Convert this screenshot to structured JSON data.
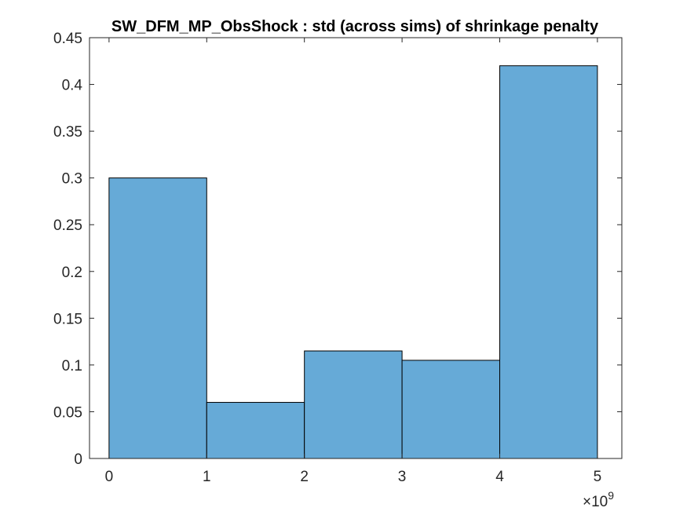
{
  "chart_data": {
    "type": "bar",
    "title": "SW_DFM_MP_ObsShock : std (across sims) of shrinkage penalty",
    "xlabel": "",
    "ylabel": "",
    "x_multiplier": {
      "base": "10",
      "exponent": "9",
      "prefix": "×"
    },
    "bins": [
      {
        "x_start": 0,
        "x_end": 1,
        "value": 0.3
      },
      {
        "x_start": 1,
        "x_end": 2,
        "value": 0.06
      },
      {
        "x_start": 2,
        "x_end": 3,
        "value": 0.115
      },
      {
        "x_start": 3,
        "x_end": 4,
        "value": 0.105
      },
      {
        "x_start": 4,
        "x_end": 5,
        "value": 0.42
      }
    ],
    "xlim": [
      -0.2,
      5.25
    ],
    "ylim": [
      0,
      0.45
    ],
    "xticks": [
      0,
      1,
      2,
      3,
      4,
      5
    ],
    "xtick_labels": [
      "0",
      "1",
      "2",
      "3",
      "4",
      "5"
    ],
    "yticks": [
      0,
      0.05,
      0.1,
      0.15,
      0.2,
      0.25,
      0.3,
      0.35,
      0.4,
      0.45
    ],
    "ytick_labels": [
      "0",
      "0.05",
      "0.1",
      "0.15",
      "0.2",
      "0.25",
      "0.3",
      "0.35",
      "0.4",
      "0.45"
    ],
    "grid": false,
    "legend": "none",
    "colors": {
      "bar_fill": "#66aad7",
      "bar_edge": "#000000",
      "axes": "#262626"
    }
  }
}
